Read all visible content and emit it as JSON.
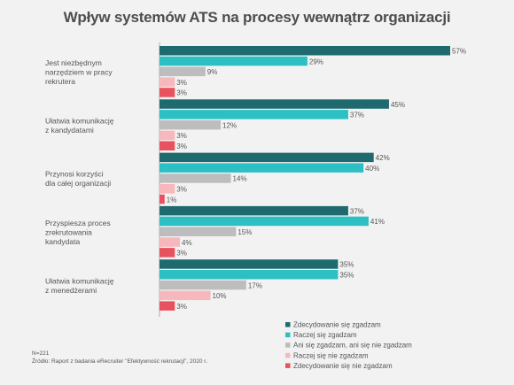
{
  "title": "Wpływ systemów ATS na procesy wewnątrz organizacji",
  "footnotes": {
    "n": "N=221",
    "source": "Źródło: Raport z badania eRecruiter \"Efektywność rekrutacji\", 2020 r."
  },
  "chart_data": {
    "type": "bar",
    "orientation": "horizontal",
    "title": "Wpływ systemów ATS na procesy wewnątrz organizacji",
    "unit": "%",
    "categories": [
      [
        "Jest niezbędnym",
        "narzędziem w pracy",
        "rekrutera"
      ],
      [
        "Ułatwia komunikację",
        "z kandydatami"
      ],
      [
        "Przynosi korzyści",
        "dla całej organizacji"
      ],
      [
        "Przyspiesza proces",
        "zrekrutowania",
        "kandydata"
      ],
      [
        "Ułatwia komunikację",
        "z menedżerami"
      ]
    ],
    "series": [
      {
        "name": "Zdecydowanie się zgadzam",
        "color": "#1e6a6e",
        "values": [
          57,
          45,
          42,
          37,
          35
        ]
      },
      {
        "name": "Raczej się zgadzam",
        "color": "#2cc0c4",
        "values": [
          29,
          37,
          40,
          41,
          35
        ]
      },
      {
        "name": "Ani się zgadzam, ani się nie zgadzam",
        "color": "#bdbdbd",
        "values": [
          9,
          12,
          14,
          15,
          17
        ]
      },
      {
        "name": "Raczej się nie zgadzam",
        "color": "#f7b8bd",
        "values": [
          3,
          3,
          3,
          4,
          10
        ]
      },
      {
        "name": "Zdecydowanie się nie zgadzam",
        "color": "#e8525f",
        "values": [
          3,
          3,
          1,
          3,
          3
        ]
      }
    ],
    "xlim": [
      0,
      57
    ],
    "legend_position": "bottom-right",
    "grid": false
  }
}
